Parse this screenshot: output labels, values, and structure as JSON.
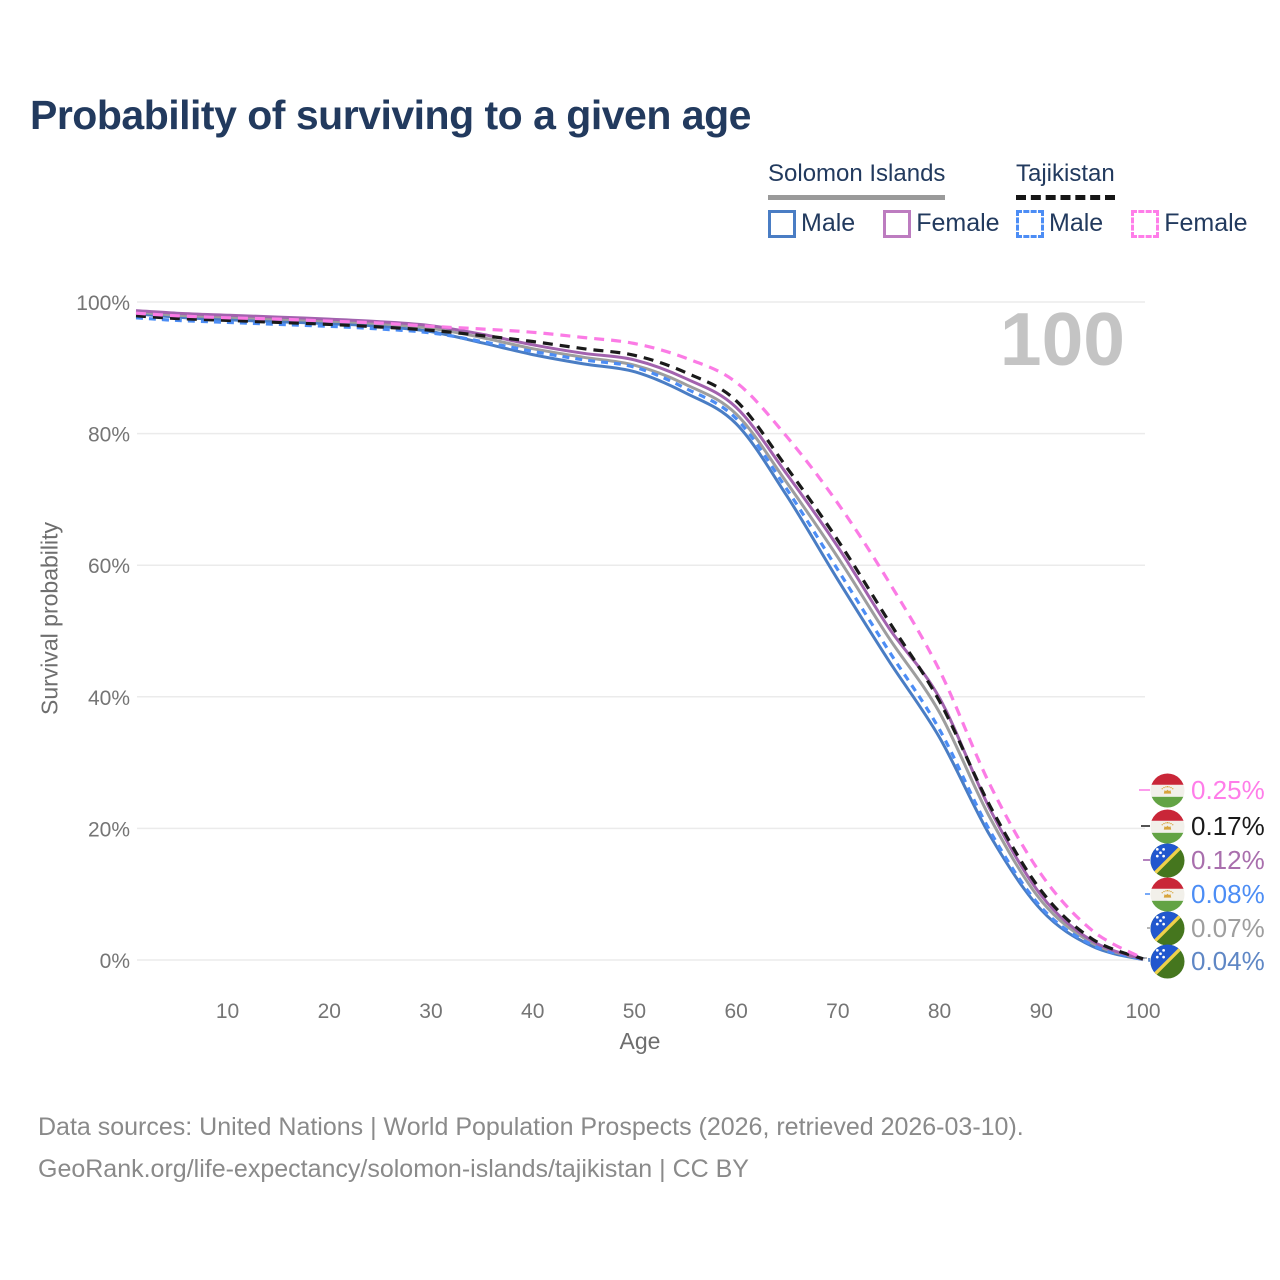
{
  "title": "Probability of surviving to a given age",
  "watermark": "100",
  "legend": {
    "groups": [
      {
        "country": "Solomon Islands",
        "underline_style": "solid",
        "underline_color": "#9A9A9A",
        "items": [
          {
            "label": "Male",
            "color": "#4A7DC4",
            "dashed": false
          },
          {
            "label": "Female",
            "color": "#BD7CC0",
            "dashed": false
          }
        ]
      },
      {
        "country": "Tajikistan",
        "underline_style": "dashed",
        "underline_color": "#161616",
        "items": [
          {
            "label": "Male",
            "color": "#4C8DF5",
            "dashed": true
          },
          {
            "label": "Female",
            "color": "#FF7DE9",
            "dashed": true
          }
        ]
      }
    ]
  },
  "chart_data": {
    "type": "line",
    "title": "Probability of surviving to a given age",
    "xlabel": "Age",
    "ylabel": "Survival probability",
    "xlim": [
      1,
      100
    ],
    "ylim": [
      0,
      100
    ],
    "grid": "horizontal-only",
    "x_ticks": [
      10,
      20,
      30,
      40,
      50,
      60,
      70,
      80,
      90,
      100
    ],
    "y_ticks": [
      0,
      20,
      40,
      60,
      80,
      100
    ],
    "y_tick_labels": [
      "0%",
      "20%",
      "40%",
      "60%",
      "80%",
      "100%"
    ],
    "hover_age": 100,
    "ages": [
      1,
      5,
      10,
      15,
      20,
      25,
      30,
      35,
      40,
      45,
      50,
      55,
      60,
      65,
      70,
      75,
      80,
      85,
      90,
      95,
      100
    ],
    "series": [
      {
        "name": "Tajikistan Female",
        "country": "Tajikistan",
        "sex": "Female",
        "style": "dashed",
        "color": "#FB7BE5",
        "dash": "10 7",
        "width": 3.2,
        "end_value": 0.25,
        "end_label": "0.25%",
        "values": [
          98.3,
          97.9,
          97.6,
          97.4,
          97.1,
          96.8,
          96.3,
          95.9,
          95.4,
          94.6,
          93.7,
          91.5,
          87.8,
          79.5,
          69.4,
          57.5,
          44.0,
          26.5,
          13.0,
          4.5,
          0.25
        ]
      },
      {
        "name": "Tajikistan Both sexes",
        "country": "Tajikistan",
        "sex": "Both sexes",
        "style": "dashed",
        "color": "#1A1A1A",
        "dash": "10 7",
        "width": 3.2,
        "end_value": 0.17,
        "end_label": "0.17%",
        "values": [
          97.9,
          97.5,
          97.2,
          96.9,
          96.6,
          96.2,
          95.7,
          94.9,
          94.0,
          92.9,
          91.9,
          89.3,
          85.0,
          74.8,
          63.8,
          51.5,
          39.3,
          23.3,
          10.5,
          3.2,
          0.17
        ]
      },
      {
        "name": "Solomon Islands Female",
        "country": "Solomon Islands",
        "sex": "Female",
        "style": "solid",
        "color": "#A262AE",
        "dash": null,
        "width": 3,
        "end_value": 0.12,
        "end_label": "0.12%",
        "values": [
          98.7,
          98.3,
          98.0,
          97.7,
          97.4,
          97.0,
          96.4,
          95.1,
          93.5,
          92.2,
          91.2,
          88.4,
          84.0,
          73.8,
          62.8,
          50.5,
          39.8,
          22.8,
          9.8,
          2.9,
          0.12
        ]
      },
      {
        "name": "Tajikistan Male",
        "country": "Tajikistan",
        "sex": "Male",
        "style": "dashed",
        "color": "#4C8DF5",
        "dash": "7 6",
        "width": 3.2,
        "end_value": 0.08,
        "end_label": "0.08%",
        "values": [
          97.6,
          97.2,
          96.9,
          96.6,
          96.3,
          95.9,
          95.3,
          94.0,
          92.5,
          91.2,
          90.1,
          86.9,
          82.3,
          71.5,
          59.3,
          47.0,
          35.0,
          19.5,
          8.0,
          2.3,
          0.08
        ]
      },
      {
        "name": "Solomon Islands Both sexes",
        "country": "Solomon Islands",
        "sex": "Both sexes",
        "style": "solid",
        "color": "#9E9E9E",
        "dash": null,
        "width": 3,
        "end_value": 0.07,
        "end_label": "0.07%",
        "values": [
          98.5,
          98.0,
          97.7,
          97.4,
          97.1,
          96.7,
          96.0,
          94.6,
          92.9,
          91.6,
          90.4,
          87.5,
          83.0,
          72.5,
          61.2,
          49.0,
          37.6,
          21.5,
          9.0,
          2.6,
          0.07
        ]
      },
      {
        "name": "Solomon Islands Male",
        "country": "Solomon Islands",
        "sex": "Male",
        "style": "solid",
        "color": "#4A7DC4",
        "dash": null,
        "width": 3,
        "end_value": 0.04,
        "end_label": "0.04%",
        "values": [
          98.2,
          97.7,
          97.3,
          97.0,
          96.7,
          96.3,
          95.5,
          93.8,
          92.0,
          90.6,
          89.4,
          86.2,
          81.5,
          70.5,
          57.8,
          45.5,
          33.8,
          18.8,
          7.6,
          2.1,
          0.04
        ]
      }
    ],
    "legend_position": "top-right"
  },
  "end_labels": [
    {
      "flag": "tajikistan",
      "label": "0.25%",
      "color": "#FF7DE9"
    },
    {
      "flag": "tajikistan",
      "label": "0.17%",
      "color": "#1A1A1A"
    },
    {
      "flag": "solomon-islands",
      "label": "0.12%",
      "color": "#A96FAD"
    },
    {
      "flag": "tajikistan",
      "label": "0.08%",
      "color": "#4C8DF5"
    },
    {
      "flag": "solomon-islands",
      "label": "0.07%",
      "color": "#9E9E9E"
    },
    {
      "flag": "solomon-islands",
      "label": "0.04%",
      "color": "#5F87C5"
    }
  ],
  "caption": {
    "line1": "Data sources: United Nations | World Population Prospects (2026, retrieved 2026-03-10).",
    "line2": "GeoRank.org/life-expectancy/solomon-islands/tajikistan | CC BY"
  },
  "colors": {
    "title_text": "#223A5E",
    "axis_text": "#757575",
    "gridline": "#EBEBEB",
    "caption_text": "#8A8A8A",
    "watermark": "#C4C4C4"
  }
}
